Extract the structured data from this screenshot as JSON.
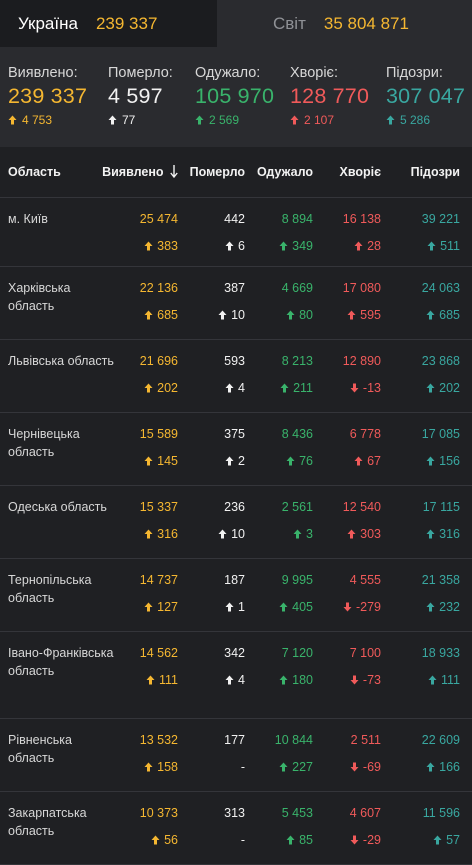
{
  "tabs": [
    {
      "name": "Україна",
      "value": "239 337"
    },
    {
      "name": "Світ",
      "value": "35 804 871"
    }
  ],
  "summary": [
    {
      "label": "Виявлено:",
      "value": "239 337",
      "delta": "4 753",
      "color": "yellow"
    },
    {
      "label": "Померло:",
      "value": "4 597",
      "delta": "77",
      "color": "white"
    },
    {
      "label": "Одужало:",
      "value": "105 970",
      "delta": "2 569",
      "color": "green"
    },
    {
      "label": "Хворіє:",
      "value": "128 770",
      "delta": "2 107",
      "color": "red"
    },
    {
      "label": "Підозри:",
      "value": "307 047",
      "delta": "5 286",
      "color": "teal"
    }
  ],
  "table": {
    "headers": [
      "Область",
      "Виявлено",
      "Померло",
      "Одужало",
      "Хворіє",
      "Підозри"
    ],
    "sort_icon": "arrow-down-icon",
    "rows": [
      {
        "region": "м. Київ",
        "cases": "25 474",
        "cases_d": "383",
        "deaths": "442",
        "deaths_d": "6",
        "rec": "8 894",
        "rec_d": "349",
        "ill": "16 138",
        "ill_d": "28",
        "ill_dir": "up",
        "susp": "39 221",
        "susp_d": "511"
      },
      {
        "region": "Харківська область",
        "cases": "22 136",
        "cases_d": "685",
        "deaths": "387",
        "deaths_d": "10",
        "rec": "4 669",
        "rec_d": "80",
        "ill": "17 080",
        "ill_d": "595",
        "ill_dir": "up",
        "susp": "24 063",
        "susp_d": "685"
      },
      {
        "region": "Львівська область",
        "cases": "21 696",
        "cases_d": "202",
        "deaths": "593",
        "deaths_d": "4",
        "rec": "8 213",
        "rec_d": "211",
        "ill": "12 890",
        "ill_d": "-13",
        "ill_dir": "down",
        "susp": "23 868",
        "susp_d": "202"
      },
      {
        "region": "Чернівецька область",
        "cases": "15 589",
        "cases_d": "145",
        "deaths": "375",
        "deaths_d": "2",
        "rec": "8 436",
        "rec_d": "76",
        "ill": "6 778",
        "ill_d": "67",
        "ill_dir": "up",
        "susp": "17 085",
        "susp_d": "156"
      },
      {
        "region": "Одеська область",
        "cases": "15 337",
        "cases_d": "316",
        "deaths": "236",
        "deaths_d": "10",
        "rec": "2 561",
        "rec_d": "3",
        "ill": "12 540",
        "ill_d": "303",
        "ill_dir": "up",
        "susp": "17 115",
        "susp_d": "316"
      },
      {
        "region": "Тернопільська область",
        "cases": "14 737",
        "cases_d": "127",
        "deaths": "187",
        "deaths_d": "1",
        "rec": "9 995",
        "rec_d": "405",
        "ill": "4 555",
        "ill_d": "-279",
        "ill_dir": "down",
        "susp": "21 358",
        "susp_d": "232"
      },
      {
        "region": "Івано-Франківська область",
        "cases": "14 562",
        "cases_d": "111",
        "deaths": "342",
        "deaths_d": "4",
        "rec": "7 120",
        "rec_d": "180",
        "ill": "7 100",
        "ill_d": "-73",
        "ill_dir": "down",
        "susp": "18 933",
        "susp_d": "111"
      },
      {
        "region": "Рівненська область",
        "cases": "13 532",
        "cases_d": "158",
        "deaths": "177",
        "deaths_d": "-",
        "rec": "10 844",
        "rec_d": "227",
        "ill": "2 511",
        "ill_d": "-69",
        "ill_dir": "down",
        "susp": "22 609",
        "susp_d": "166"
      },
      {
        "region": "Закарпатська область",
        "cases": "10 373",
        "cases_d": "56",
        "deaths": "313",
        "deaths_d": "-",
        "rec": "5 453",
        "rec_d": "85",
        "ill": "4 607",
        "ill_d": "-29",
        "ill_dir": "down",
        "susp": "11 596",
        "susp_d": "57"
      }
    ]
  },
  "colors": {
    "yellow": "#f5b731",
    "white": "#f1f1f1",
    "green": "#39b36b",
    "red": "#f05a5a",
    "teal": "#39a7a0"
  }
}
